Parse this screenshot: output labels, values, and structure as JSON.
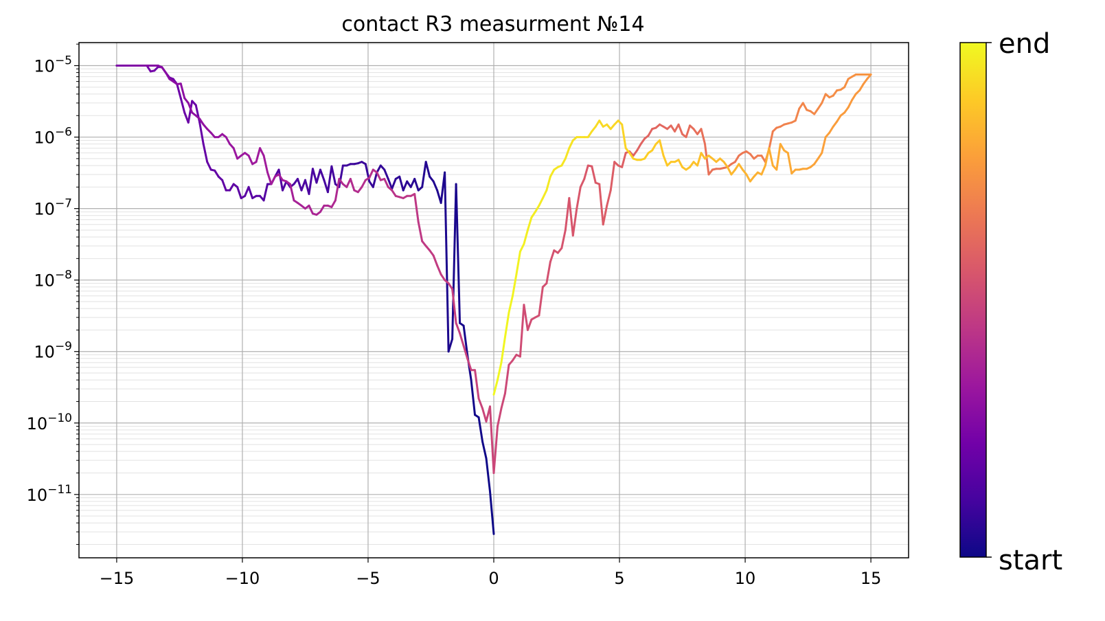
{
  "chart_data": {
    "type": "line",
    "title": "contact R3 measurment №14",
    "xlabel": "",
    "ylabel": "",
    "x_ticks": [
      "−15",
      "−10",
      "−5",
      "0",
      "5",
      "10",
      "15"
    ],
    "x_tick_values": [
      -15,
      -10,
      -5,
      0,
      5,
      10,
      15
    ],
    "y_scale": "log",
    "y_tick_exponents": [
      -5,
      -6,
      -7,
      -8,
      -9,
      -10,
      -11
    ],
    "y_tick_labels": [
      "10^-5",
      "10^-6",
      "10^-7",
      "10^-8",
      "10^-9",
      "10^-10",
      "10^-11"
    ],
    "xlim": [
      -16.5,
      16.5
    ],
    "ylim": [
      1.3e-12,
      2.1e-05
    ],
    "grid": "major and minor",
    "color_encoding": "measurement order (colorbar 'plasma': start = dark blue, end = yellow)",
    "colorbar": {
      "labels": [
        "end",
        "start"
      ],
      "colormap": [
        "#0d0887",
        "#46039f",
        "#7201a8",
        "#9c179e",
        "#bd3786",
        "#d8576b",
        "#ed7953",
        "#fb9f3a",
        "#fdca26",
        "#f0f921"
      ]
    },
    "series": [
      {
        "segment": "1: 0 → −15",
        "x": [
          0,
          -0.15,
          -0.3,
          -0.45,
          -0.6,
          -0.75,
          -0.9,
          -1.05,
          -1.2,
          -1.35,
          -1.5,
          -1.65,
          -1.8,
          -1.95,
          -2.1,
          -2.25,
          -2.4,
          -2.55,
          -2.7,
          -2.85,
          -3.0,
          -3.15,
          -3.3,
          -3.45,
          -3.6,
          -3.75,
          -3.9,
          -4.05,
          -4.2,
          -4.35,
          -4.5,
          -4.65,
          -4.8,
          -4.95,
          -5.1,
          -5.25,
          -5.4,
          -5.55,
          -5.7,
          -5.85,
          -6.0,
          -6.15,
          -6.3,
          -6.45,
          -6.6,
          -6.75,
          -6.9,
          -7.05,
          -7.2,
          -7.35,
          -7.5,
          -7.65,
          -7.8,
          -7.95,
          -8.1,
          -8.25,
          -8.4,
          -8.55,
          -8.7,
          -8.85,
          -9.0,
          -9.15,
          -9.3,
          -9.45,
          -9.6,
          -9.75,
          -9.9,
          -10.05,
          -10.2,
          -10.35,
          -10.5,
          -10.65,
          -10.8,
          -10.95,
          -11.1,
          -11.25,
          -11.4,
          -11.55,
          -11.7,
          -11.85,
          -12.0,
          -12.15,
          -12.3,
          -12.45,
          -12.6,
          -12.75,
          -12.9,
          -13.05,
          -13.2,
          -13.35,
          -13.5,
          -13.65,
          -13.8,
          -13.95,
          -14.1,
          -14.25,
          -14.4,
          -14.55,
          -14.7,
          -14.85,
          -15.0
        ],
        "y": [
          2.8e-12,
          1.1e-11,
          3.2e-11,
          5.5e-11,
          1.2e-10,
          1.3e-10,
          4e-10,
          9e-10,
          2.3e-09,
          2.5e-09,
          2.2e-07,
          1.5e-09,
          1e-09,
          3.2e-07,
          1.2e-07,
          1.8e-07,
          2.4e-07,
          2.8e-07,
          4.5e-07,
          2e-07,
          1.8e-07,
          2.6e-07,
          2e-07,
          2.4e-07,
          1.8e-07,
          2.8e-07,
          2.6e-07,
          1.9e-07,
          2.6e-07,
          3.5e-07,
          4e-07,
          3.2e-07,
          2e-07,
          2.4e-07,
          4.2e-07,
          4.5e-07,
          4.3e-07,
          4.2e-07,
          4.2e-07,
          4e-07,
          4e-07,
          2e-07,
          2.2e-07,
          3.9e-07,
          1.7e-07,
          2.5e-07,
          3.5e-07,
          2.3e-07,
          3.6e-07,
          1.6e-07,
          2.5e-07,
          1.8e-07,
          2.6e-07,
          2.2e-07,
          2e-07,
          2.4e-07,
          1.8e-07,
          3.5e-07,
          2.8e-07,
          2.2e-07,
          2.2e-07,
          1.3e-07,
          1.5e-07,
          1.5e-07,
          1.4e-07,
          2e-07,
          1.5e-07,
          1.4e-07,
          2e-07,
          2.2e-07,
          1.8e-07,
          1.8e-07,
          2.5e-07,
          2.8e-07,
          3.4e-07,
          3.5e-07,
          4.5e-07,
          8e-07,
          1.6e-06,
          2.8e-06,
          3.2e-06,
          1.6e-06,
          2.2e-06,
          3.5e-06,
          5.5e-06,
          6.5e-06,
          6.8e-06,
          8e-06,
          9.5e-06,
          9.6e-06,
          8.5e-06,
          8.3e-06,
          1e-05,
          1e-05,
          1e-05,
          1e-05,
          1e-05,
          1e-05,
          1e-05,
          1e-05,
          1e-05
        ]
      },
      {
        "segment": "2: −15 → 0",
        "x": [
          -15.0,
          -14.85,
          -14.7,
          -14.55,
          -14.4,
          -14.25,
          -14.1,
          -13.95,
          -13.8,
          -13.65,
          -13.5,
          -13.35,
          -13.2,
          -13.05,
          -12.9,
          -12.75,
          -12.6,
          -12.45,
          -12.3,
          -12.15,
          -12.0,
          -11.85,
          -11.7,
          -11.55,
          -11.4,
          -11.25,
          -11.1,
          -10.95,
          -10.8,
          -10.65,
          -10.5,
          -10.35,
          -10.2,
          -10.05,
          -9.9,
          -9.75,
          -9.6,
          -9.45,
          -9.3,
          -9.15,
          -9.0,
          -8.85,
          -8.7,
          -8.55,
          -8.4,
          -8.25,
          -8.1,
          -7.95,
          -7.8,
          -7.65,
          -7.5,
          -7.35,
          -7.2,
          -7.05,
          -6.9,
          -6.75,
          -6.6,
          -6.45,
          -6.3,
          -6.15,
          -6.0,
          -5.85,
          -5.7,
          -5.55,
          -5.4,
          -5.25,
          -5.1,
          -4.95,
          -4.8,
          -4.65,
          -4.5,
          -4.35,
          -4.2,
          -4.05,
          -3.9,
          -3.75,
          -3.6,
          -3.45,
          -3.3,
          -3.15,
          -3.0,
          -2.85,
          -2.7,
          -2.55,
          -2.4,
          -2.25,
          -2.1,
          -1.95,
          -1.8,
          -1.65,
          -1.5,
          -1.35,
          -1.2,
          -1.05,
          -0.9,
          -0.75,
          -0.6,
          -0.45,
          -0.3,
          -0.15,
          0
        ],
        "y": [
          1e-05,
          1e-05,
          1e-05,
          1e-05,
          1e-05,
          1e-05,
          1e-05,
          1e-05,
          1e-05,
          1e-05,
          1e-05,
          1e-05,
          9.5e-06,
          8e-06,
          6.5e-06,
          6e-06,
          5.5e-06,
          5.6e-06,
          3.5e-06,
          3e-06,
          2.2e-06,
          2e-06,
          1.8e-06,
          1.5e-06,
          1.3e-06,
          1.15e-06,
          1e-06,
          1e-06,
          1.1e-06,
          1e-06,
          8e-07,
          7e-07,
          5e-07,
          5.5e-07,
          6e-07,
          5.5e-07,
          4.2e-07,
          4.5e-07,
          7e-07,
          5.5e-07,
          3.2e-07,
          2.2e-07,
          2.8e-07,
          3e-07,
          2.5e-07,
          2.4e-07,
          2.2e-07,
          1.3e-07,
          1.2e-07,
          1.1e-07,
          1e-07,
          1.1e-07,
          8.5e-08,
          8.2e-08,
          9e-08,
          1.1e-07,
          1.1e-07,
          1.05e-07,
          1.3e-07,
          2.6e-07,
          2.2e-07,
          2e-07,
          2.6e-07,
          1.8e-07,
          1.7e-07,
          2e-07,
          2.5e-07,
          2.7e-07,
          3.5e-07,
          3.2e-07,
          2.5e-07,
          2.6e-07,
          2e-07,
          1.8e-07,
          1.5e-07,
          1.45e-07,
          1.4e-07,
          1.5e-07,
          1.5e-07,
          1.6e-07,
          6.5e-08,
          3.5e-08,
          3e-08,
          2.6e-08,
          2.2e-08,
          1.6e-08,
          1.2e-08,
          1e-08,
          9e-09,
          7.5e-09,
          2.5e-09,
          1.8e-09,
          1.2e-09,
          8e-10,
          5.5e-10,
          5.5e-10,
          2.2e-10,
          1.6e-10,
          1.05e-10,
          1.7e-10,
          2e-11
        ]
      },
      {
        "segment": "3: 0 → 15",
        "x": [
          0,
          0.15,
          0.3,
          0.45,
          0.6,
          0.75,
          0.9,
          1.05,
          1.2,
          1.35,
          1.5,
          1.65,
          1.8,
          1.95,
          2.1,
          2.25,
          2.4,
          2.55,
          2.7,
          2.85,
          3.0,
          3.15,
          3.3,
          3.45,
          3.6,
          3.75,
          3.9,
          4.05,
          4.2,
          4.35,
          4.5,
          4.65,
          4.8,
          4.95,
          5.1,
          5.25,
          5.4,
          5.55,
          5.7,
          5.85,
          6.0,
          6.15,
          6.3,
          6.45,
          6.6,
          6.75,
          6.9,
          7.05,
          7.2,
          7.35,
          7.5,
          7.65,
          7.8,
          7.95,
          8.1,
          8.25,
          8.4,
          8.55,
          8.7,
          8.85,
          9.0,
          9.15,
          9.3,
          9.45,
          9.6,
          9.75,
          9.9,
          10.05,
          10.2,
          10.35,
          10.5,
          10.65,
          10.8,
          10.95,
          11.1,
          11.25,
          11.4,
          11.55,
          11.7,
          11.85,
          12.0,
          12.15,
          12.3,
          12.45,
          12.6,
          12.75,
          12.9,
          13.05,
          13.2,
          13.35,
          13.5,
          13.65,
          13.8,
          13.95,
          14.1,
          14.25,
          14.4,
          14.55,
          14.7,
          14.85,
          15.0
        ],
        "y": [
          2e-11,
          9e-11,
          1.6e-10,
          2.6e-10,
          6.5e-10,
          7.5e-10,
          9e-10,
          8.5e-10,
          4.5e-09,
          2e-09,
          2.8e-09,
          3e-09,
          3.2e-09,
          8e-09,
          9e-09,
          1.8e-08,
          2.6e-08,
          2.4e-08,
          2.8e-08,
          5e-08,
          1.4e-07,
          4.2e-08,
          1e-07,
          2e-07,
          2.6e-07,
          4e-07,
          3.9e-07,
          2.3e-07,
          2.2e-07,
          6e-08,
          1.1e-07,
          1.8e-07,
          4.5e-07,
          4e-07,
          3.8e-07,
          6e-07,
          6.3e-07,
          5.5e-07,
          6.5e-07,
          8e-07,
          9.5e-07,
          1.05e-06,
          1.3e-06,
          1.35e-06,
          1.5e-06,
          1.4e-06,
          1.3e-06,
          1.45e-06,
          1.2e-06,
          1.5e-06,
          1.1e-06,
          1e-06,
          1.45e-06,
          1.3e-06,
          1.1e-06,
          1.3e-06,
          8e-07,
          3e-07,
          3.5e-07,
          3.6e-07,
          3.6e-07,
          3.7e-07,
          3.8e-07,
          4.2e-07,
          4.5e-07,
          5.5e-07,
          6e-07,
          6.3e-07,
          5.8e-07,
          5e-07,
          5.5e-07,
          5.5e-07,
          4.5e-07,
          6.8e-07,
          1.2e-06,
          1.35e-06,
          1.4e-06,
          1.5e-06,
          1.55e-06,
          1.6e-06,
          1.7e-06,
          2.5e-06,
          3e-06,
          2.4e-06,
          2.3e-06,
          2.1e-06,
          2.5e-06,
          3e-06,
          4e-06,
          3.6e-06,
          3.8e-06,
          4.5e-06,
          4.6e-06,
          5e-06,
          6.5e-06,
          7e-06,
          7.5e-06,
          7.5e-06,
          7.5e-06,
          7.5e-06,
          7.5e-06
        ]
      },
      {
        "segment": "4: 15 → 0",
        "x": [
          15.0,
          14.85,
          14.7,
          14.55,
          14.4,
          14.25,
          14.1,
          13.95,
          13.8,
          13.65,
          13.5,
          13.35,
          13.2,
          13.05,
          12.9,
          12.75,
          12.6,
          12.45,
          12.3,
          12.15,
          12.0,
          11.85,
          11.7,
          11.55,
          11.4,
          11.25,
          11.1,
          10.95,
          10.8,
          10.65,
          10.5,
          10.35,
          10.2,
          10.05,
          9.9,
          9.75,
          9.6,
          9.45,
          9.3,
          9.15,
          9.0,
          8.85,
          8.7,
          8.55,
          8.4,
          8.25,
          8.1,
          7.95,
          7.8,
          7.65,
          7.5,
          7.35,
          7.2,
          7.05,
          6.9,
          6.75,
          6.6,
          6.45,
          6.3,
          6.15,
          6.0,
          5.85,
          5.7,
          5.55,
          5.4,
          5.25,
          5.1,
          4.95,
          4.8,
          4.65,
          4.5,
          4.35,
          4.2,
          4.05,
          3.9,
          3.75,
          3.6,
          3.45,
          3.3,
          3.15,
          3.0,
          2.85,
          2.7,
          2.55,
          2.4,
          2.25,
          2.1,
          1.95,
          1.8,
          1.65,
          1.5,
          1.35,
          1.2,
          1.05,
          0.9,
          0.75,
          0.6,
          0.45,
          0.3,
          0.15,
          0
        ],
        "y": [
          7.5e-06,
          6.5e-06,
          5.5e-06,
          4.5e-06,
          4e-06,
          3.3e-06,
          2.6e-06,
          2.2e-06,
          2e-06,
          1.65e-06,
          1.4e-06,
          1.15e-06,
          1e-06,
          6e-07,
          5e-07,
          4.2e-07,
          3.8e-07,
          3.6e-07,
          3.6e-07,
          3.5e-07,
          3.5e-07,
          3.1e-07,
          6e-07,
          6.5e-07,
          8e-07,
          3.5e-07,
          4e-07,
          7e-07,
          4e-07,
          3e-07,
          3.2e-07,
          2.8e-07,
          2.4e-07,
          3e-07,
          3.5e-07,
          4.2e-07,
          3.5e-07,
          3e-07,
          3.8e-07,
          4.5e-07,
          5e-07,
          4.5e-07,
          5e-07,
          5.5e-07,
          5e-07,
          6e-07,
          4e-07,
          4.5e-07,
          3.8e-07,
          3.5e-07,
          3.8e-07,
          4.8e-07,
          4.5e-07,
          4.5e-07,
          4e-07,
          5.5e-07,
          9e-07,
          8e-07,
          6.5e-07,
          6e-07,
          5e-07,
          4.8e-07,
          4.8e-07,
          5e-07,
          6e-07,
          7e-07,
          1.5e-06,
          1.7e-06,
          1.5e-06,
          1.3e-06,
          1.5e-06,
          1.4e-06,
          1.7e-06,
          1.4e-06,
          1.2e-06,
          1e-06,
          1e-06,
          1e-06,
          1e-06,
          9e-07,
          7e-07,
          5e-07,
          4e-07,
          3.8e-07,
          3.5e-07,
          2.8e-07,
          1.8e-07,
          1.4e-07,
          1.1e-07,
          9e-08,
          7.5e-08,
          5e-08,
          3.2e-08,
          2.5e-08,
          1.2e-08,
          6e-09,
          3.5e-09,
          1.6e-09,
          7e-10,
          4e-10,
          2.5e-10
        ]
      }
    ]
  }
}
